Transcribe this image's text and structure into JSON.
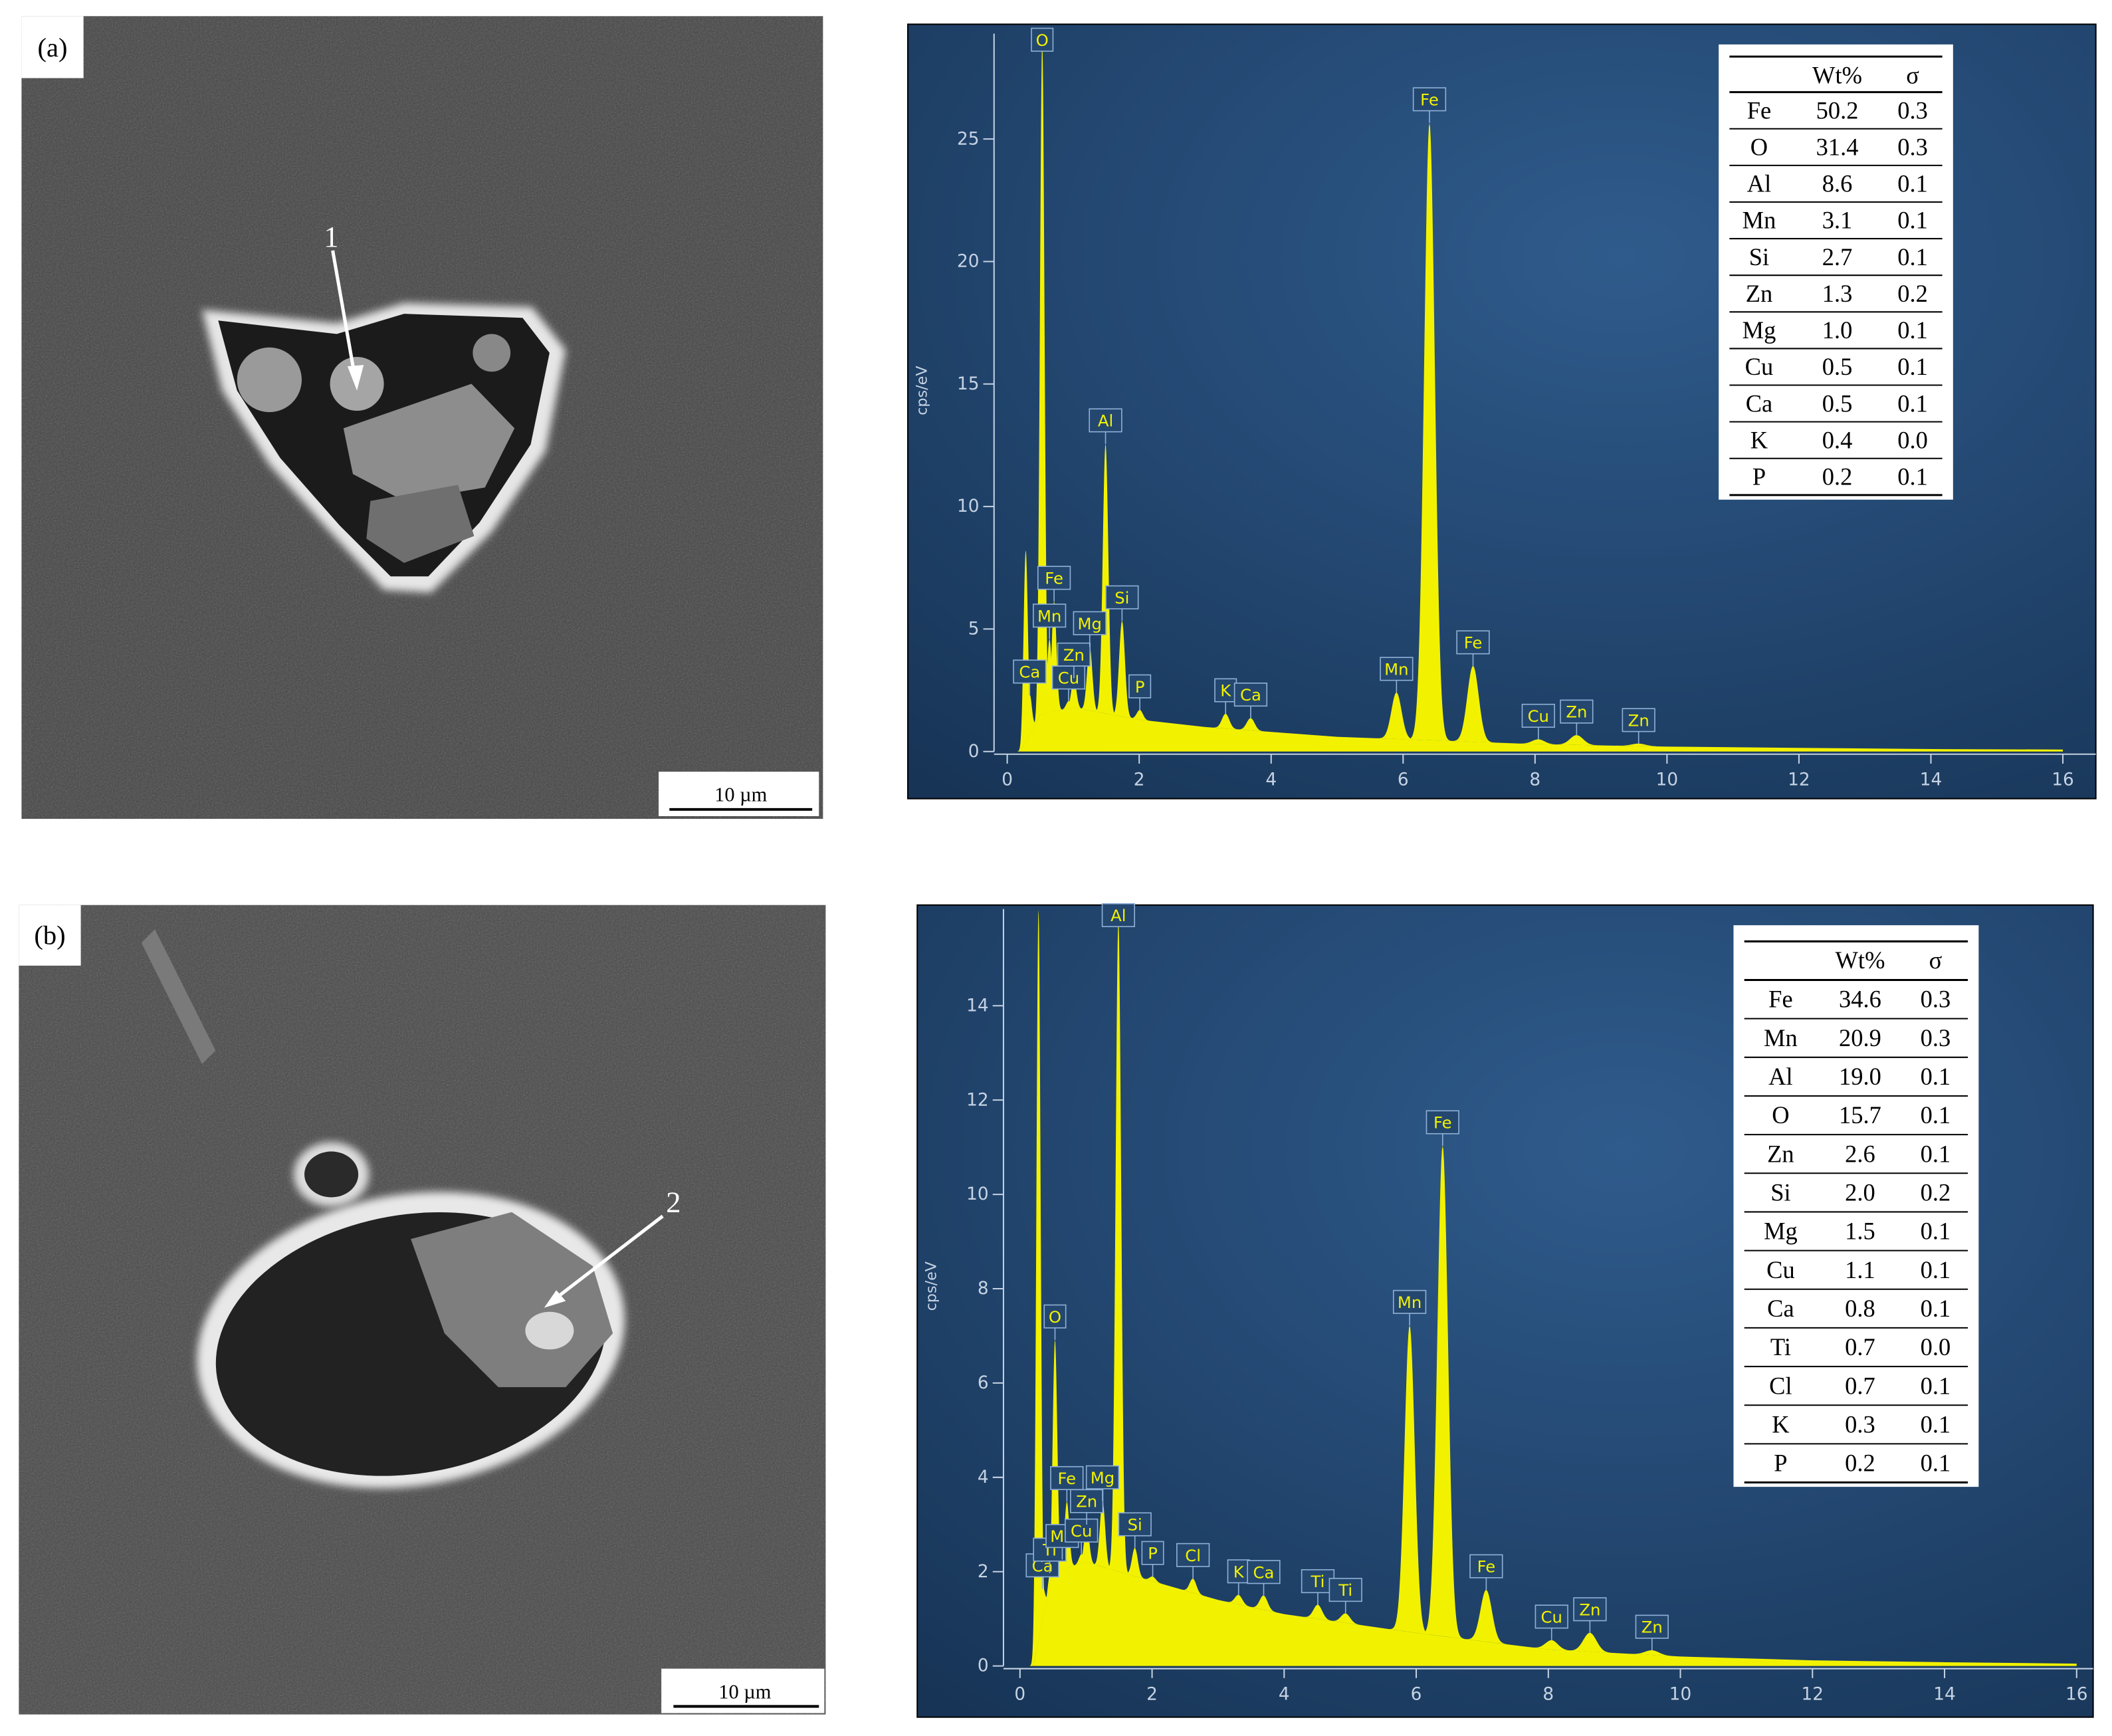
{
  "panels": [
    {
      "label": "(a)",
      "marker": "1",
      "scale_bar": "10 µm"
    },
    {
      "label": "(b)",
      "marker": "2",
      "scale_bar": "10 µm"
    }
  ],
  "chart_data": [
    {
      "type": "spectrum",
      "y_label": "cps/eV",
      "color": "#f2f200",
      "xlim": [
        -0.2,
        16.5
      ],
      "xticks": [
        0,
        2,
        4,
        6,
        8,
        10,
        12,
        14,
        16
      ],
      "ylim": [
        0,
        29.3
      ],
      "yticks": [
        0,
        5,
        10,
        15,
        20,
        25
      ],
      "background": {
        "x": [
          0.2,
          0.5,
          1,
          2,
          3,
          4,
          5,
          6,
          8,
          10,
          12,
          14,
          16
        ],
        "values": [
          0,
          1.5,
          1.8,
          1.3,
          1.0,
          0.8,
          0.6,
          0.5,
          0.3,
          0.2,
          0.15,
          0.1,
          0.08
        ]
      },
      "peaks": {
        "labels": [
          null,
          "Ca",
          "O",
          "Mn",
          "Fe",
          "Cu",
          "Zn",
          "Mg",
          "Al",
          "Si",
          "P",
          "K",
          "Ca",
          "Mn",
          "Fe",
          "Fe",
          "Cu",
          "Zn",
          "Zn"
        ],
        "x": [
          0.28,
          0.34,
          0.53,
          0.64,
          0.71,
          0.93,
          1.01,
          1.25,
          1.49,
          1.74,
          2.01,
          3.31,
          3.69,
          5.9,
          6.4,
          7.06,
          8.05,
          8.63,
          9.57
        ],
        "values": [
          7.8,
          1.6,
          27.5,
          3.0,
          4.5,
          0.3,
          1.2,
          2.6,
          11.0,
          3.9,
          0.4,
          0.6,
          0.5,
          1.9,
          25.2,
          3.1,
          0.2,
          0.4,
          0.1
        ]
      },
      "table": {
        "header": [
          "Wt%",
          "σ"
        ],
        "rows": [
          [
            "Fe",
            "50.2",
            "0.3"
          ],
          [
            "O",
            "31.4",
            "0.3"
          ],
          [
            "Al",
            "8.6",
            "0.1"
          ],
          [
            "Mn",
            "3.1",
            "0.1"
          ],
          [
            "Si",
            "2.7",
            "0.1"
          ],
          [
            "Zn",
            "1.3",
            "0.2"
          ],
          [
            "Mg",
            "1.0",
            "0.1"
          ],
          [
            "Cu",
            "0.5",
            "0.1"
          ],
          [
            "Ca",
            "0.5",
            "0.1"
          ],
          [
            "K",
            "0.4",
            "0.0"
          ],
          [
            "P",
            "0.2",
            "0.1"
          ]
        ]
      }
    },
    {
      "type": "spectrum",
      "y_label": "cps/eV",
      "color": "#f2f200",
      "xlim": [
        -0.25,
        16.25
      ],
      "xticks": [
        0,
        2,
        4,
        6,
        8,
        10,
        12,
        14,
        16
      ],
      "ylim": [
        0,
        16.05
      ],
      "yticks": [
        0,
        2,
        4,
        6,
        8,
        10,
        12,
        14
      ],
      "background": {
        "x": [
          0.2,
          0.5,
          1,
          2,
          3,
          4,
          5,
          6,
          8,
          10,
          12,
          14,
          16
        ],
        "values": [
          0,
          2.0,
          2.2,
          1.8,
          1.4,
          1.1,
          0.9,
          0.7,
          0.35,
          0.2,
          0.12,
          0.08,
          0.05
        ]
      },
      "peaks": {
        "labels": [
          null,
          "Ca",
          "Ti",
          "O",
          "Mn",
          "Fe",
          "Cu",
          "Zn",
          "Mg",
          "Al",
          "Si",
          "P",
          "Cl",
          "K",
          "Ca",
          "Ti",
          "Ti",
          "Mn",
          "Fe",
          "Fe",
          "Cu",
          "Zn",
          "Zn"
        ],
        "x": [
          0.28,
          0.34,
          0.45,
          0.53,
          0.64,
          0.71,
          0.93,
          1.01,
          1.25,
          1.49,
          1.74,
          2.01,
          2.62,
          3.31,
          3.69,
          4.51,
          4.93,
          5.9,
          6.4,
          7.06,
          8.05,
          8.63,
          9.57
        ],
        "values": [
          15.5,
          0.7,
          0.3,
          4.9,
          0.2,
          1.4,
          0.2,
          0.8,
          1.4,
          13.8,
          0.6,
          0.1,
          0.3,
          0.2,
          0.3,
          0.3,
          0.2,
          6.5,
          10.4,
          1.1,
          0.2,
          0.4,
          0.1
        ]
      },
      "table": {
        "header": [
          "Wt%",
          "σ"
        ],
        "rows": [
          [
            "Fe",
            "34.6",
            "0.3"
          ],
          [
            "Mn",
            "20.9",
            "0.3"
          ],
          [
            "Al",
            "19.0",
            "0.1"
          ],
          [
            "O",
            "15.7",
            "0.1"
          ],
          [
            "Zn",
            "2.6",
            "0.1"
          ],
          [
            "Si",
            "2.0",
            "0.2"
          ],
          [
            "Mg",
            "1.5",
            "0.1"
          ],
          [
            "Cu",
            "1.1",
            "0.1"
          ],
          [
            "Ca",
            "0.8",
            "0.1"
          ],
          [
            "Ti",
            "0.7",
            "0.0"
          ],
          [
            "Cl",
            "0.7",
            "0.1"
          ],
          [
            "K",
            "0.3",
            "0.1"
          ],
          [
            "P",
            "0.2",
            "0.1"
          ]
        ]
      }
    }
  ]
}
